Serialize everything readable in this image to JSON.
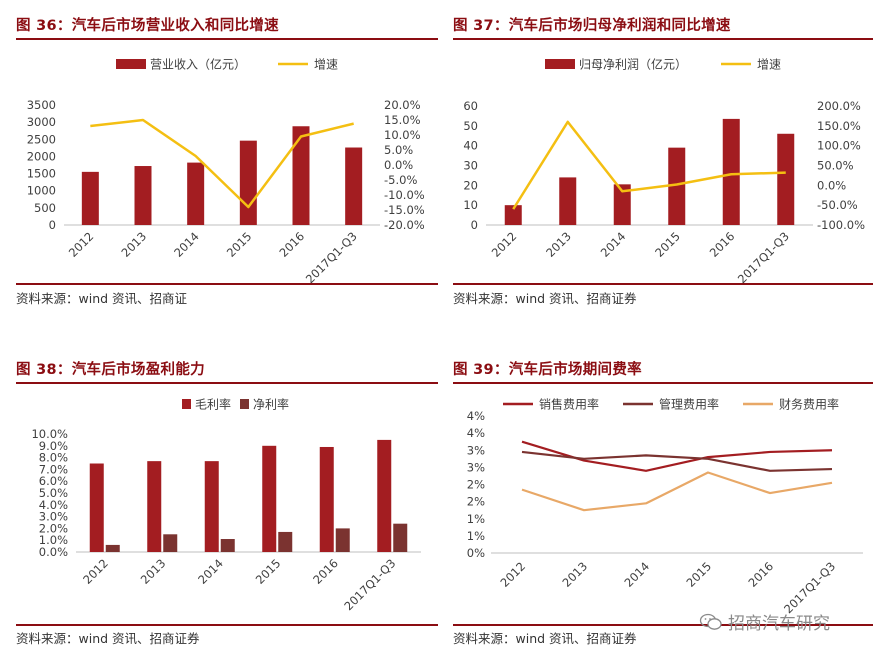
{
  "panels": [
    {
      "title": "图 36：汽车后市场营业收入和同比增速",
      "source": "资料来源：wind 资讯、招商证",
      "chart": {
        "type": "bar+line",
        "categories": [
          "2012",
          "2013",
          "2014",
          "2015",
          "2016",
          "2017Q1-Q3"
        ],
        "series": [
          {
            "name": "营业收入（亿元）",
            "kind": "bar",
            "axis": "left",
            "color": "#a31d21",
            "values": [
              1550,
              1720,
              1820,
              2460,
              2880,
              2260
            ]
          },
          {
            "name": "增速",
            "kind": "line",
            "axis": "right",
            "color": "#f4bf12",
            "values": [
              13.0,
              15.0,
              3.0,
              -14.0,
              9.5,
              13.8
            ]
          }
        ],
        "left_axis": {
          "min": 0,
          "max": 3500,
          "step": 500,
          "ticks": [
            "0",
            "500",
            "1000",
            "1500",
            "2000",
            "2500",
            "3000",
            "3500"
          ]
        },
        "right_axis": {
          "min": -20,
          "max": 20,
          "step": 5,
          "ticks": [
            "-20.0%",
            "-15.0%",
            "-10.0%",
            "-5.0%",
            "0.0%",
            "5.0%",
            "10.0%",
            "15.0%",
            "20.0%"
          ]
        },
        "legend_position": "top"
      }
    },
    {
      "title": "图 37：汽车后市场归母净利润和同比增速",
      "source": "资料来源：wind 资讯、招商证券",
      "chart": {
        "type": "bar+line",
        "categories": [
          "2012",
          "2013",
          "2014",
          "2015",
          "2016",
          "2017Q1-Q3"
        ],
        "series": [
          {
            "name": "归母净利润（亿元）",
            "kind": "bar",
            "axis": "left",
            "color": "#a31d21",
            "values": [
              10,
              24,
              20.5,
              39,
              53.5,
              46
            ]
          },
          {
            "name": "增速",
            "kind": "line",
            "axis": "right",
            "color": "#f4bf12",
            "values": [
              -60,
              160,
              -15,
              2,
              28,
              32
            ]
          }
        ],
        "left_axis": {
          "min": 0,
          "max": 60,
          "step": 10,
          "ticks": [
            "0",
            "10",
            "20",
            "30",
            "40",
            "50",
            "60"
          ]
        },
        "right_axis": {
          "min": -100,
          "max": 200,
          "step": 50,
          "ticks": [
            "-100.0%",
            "-50.0%",
            "0.0%",
            "50.0%",
            "100.0%",
            "150.0%",
            "200.0%"
          ]
        },
        "legend_position": "top"
      }
    },
    {
      "title": "图 38：汽车后市场盈利能力",
      "source": "资料来源：wind 资讯、招商证券",
      "chart": {
        "type": "bar",
        "categories": [
          "2012",
          "2013",
          "2014",
          "2015",
          "2016",
          "2017Q1-Q3"
        ],
        "series": [
          {
            "name": "毛利率",
            "color": "#a31d21",
            "values": [
              7.5,
              7.7,
              7.7,
              9.0,
              8.9,
              9.5
            ]
          },
          {
            "name": "净利率",
            "color": "#7b3330",
            "values": [
              0.6,
              1.5,
              1.1,
              1.7,
              2.0,
              2.4
            ]
          }
        ],
        "axis": {
          "min": 0,
          "max": 10,
          "step": 1,
          "ticks": [
            "0.0%",
            "1.0%",
            "2.0%",
            "3.0%",
            "4.0%",
            "5.0%",
            "6.0%",
            "7.0%",
            "8.0%",
            "9.0%",
            "10.0%"
          ]
        },
        "legend_position": "top"
      }
    },
    {
      "title": "图 39：汽车后市场期间费率",
      "source": "资料来源：wind 资讯、招商证券",
      "chart": {
        "type": "line",
        "categories": [
          "2012",
          "2013",
          "2014",
          "2015",
          "2016",
          "2017Q1-Q3"
        ],
        "series": [
          {
            "name": "销售费用率",
            "color": "#a31d21",
            "values": [
              3.25,
              2.7,
              2.4,
              2.8,
              2.95,
              3.0
            ]
          },
          {
            "name": "管理费用率",
            "color": "#7b3330",
            "values": [
              2.95,
              2.75,
              2.85,
              2.75,
              2.4,
              2.45
            ]
          },
          {
            "name": "财务费用率",
            "color": "#e8a867",
            "values": [
              1.85,
              1.25,
              1.45,
              2.35,
              1.75,
              2.05
            ]
          }
        ],
        "axis": {
          "min": 0,
          "max": 4,
          "step": 0.5,
          "ticks": [
            "0%",
            "1%",
            "1%",
            "2%",
            "2%",
            "3%",
            "3%",
            "4%",
            "4%"
          ]
        },
        "grid": false,
        "legend_position": "top"
      }
    }
  ],
  "watermark": {
    "text": "招商汽车研究",
    "icon": "wechat-icon"
  }
}
